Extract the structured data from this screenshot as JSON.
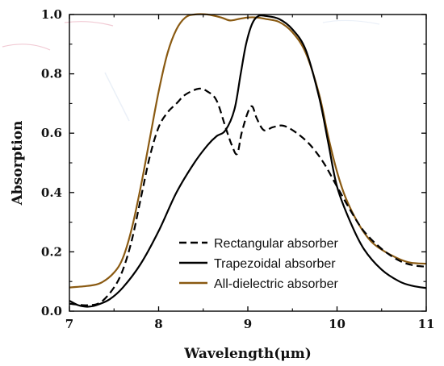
{
  "chart_data": {
    "type": "line",
    "title": "",
    "xlabel": "Wavelength(μm)",
    "ylabel": "Absorption",
    "xlim": [
      7,
      11
    ],
    "ylim": [
      0,
      1.0
    ],
    "x_ticks": [
      7,
      8,
      9,
      10,
      11
    ],
    "x_tick_labels": [
      "7",
      "8",
      "9",
      "10",
      "11"
    ],
    "y_ticks": [
      0.0,
      0.2,
      0.4,
      0.6,
      0.8,
      1.0
    ],
    "y_tick_labels": [
      "0.0",
      "0.2",
      "0.4",
      "0.6",
      "0.8",
      "1.0"
    ],
    "grid": false,
    "legend_position": "bottom-center",
    "series": [
      {
        "name": "Rectangular absorber",
        "color": "#000000",
        "style": "dashed",
        "points": [
          [
            7.0,
            0.025
          ],
          [
            7.2,
            0.02
          ],
          [
            7.35,
            0.03
          ],
          [
            7.5,
            0.08
          ],
          [
            7.6,
            0.14
          ],
          [
            7.7,
            0.24
          ],
          [
            7.8,
            0.38
          ],
          [
            7.9,
            0.52
          ],
          [
            8.0,
            0.62
          ],
          [
            8.1,
            0.67
          ],
          [
            8.2,
            0.7
          ],
          [
            8.3,
            0.73
          ],
          [
            8.45,
            0.75
          ],
          [
            8.55,
            0.74
          ],
          [
            8.65,
            0.71
          ],
          [
            8.75,
            0.62
          ],
          [
            8.82,
            0.56
          ],
          [
            8.88,
            0.53
          ],
          [
            8.93,
            0.6
          ],
          [
            9.0,
            0.67
          ],
          [
            9.05,
            0.69
          ],
          [
            9.1,
            0.65
          ],
          [
            9.18,
            0.61
          ],
          [
            9.28,
            0.62
          ],
          [
            9.4,
            0.625
          ],
          [
            9.55,
            0.6
          ],
          [
            9.7,
            0.56
          ],
          [
            9.85,
            0.5
          ],
          [
            10.0,
            0.42
          ],
          [
            10.15,
            0.34
          ],
          [
            10.3,
            0.27
          ],
          [
            10.5,
            0.21
          ],
          [
            10.7,
            0.17
          ],
          [
            10.85,
            0.155
          ],
          [
            11.0,
            0.15
          ]
        ]
      },
      {
        "name": "Trapezoidal absorber",
        "color": "#000000",
        "style": "solid",
        "points": [
          [
            7.0,
            0.035
          ],
          [
            7.1,
            0.02
          ],
          [
            7.2,
            0.015
          ],
          [
            7.3,
            0.02
          ],
          [
            7.45,
            0.04
          ],
          [
            7.6,
            0.08
          ],
          [
            7.8,
            0.16
          ],
          [
            8.0,
            0.27
          ],
          [
            8.2,
            0.4
          ],
          [
            8.4,
            0.5
          ],
          [
            8.55,
            0.56
          ],
          [
            8.65,
            0.59
          ],
          [
            8.75,
            0.61
          ],
          [
            8.85,
            0.68
          ],
          [
            8.92,
            0.8
          ],
          [
            8.98,
            0.9
          ],
          [
            9.05,
            0.97
          ],
          [
            9.12,
            0.995
          ],
          [
            9.2,
            0.995
          ],
          [
            9.35,
            0.985
          ],
          [
            9.5,
            0.95
          ],
          [
            9.65,
            0.88
          ],
          [
            9.8,
            0.72
          ],
          [
            9.9,
            0.57
          ],
          [
            10.0,
            0.42
          ],
          [
            10.15,
            0.3
          ],
          [
            10.3,
            0.21
          ],
          [
            10.5,
            0.14
          ],
          [
            10.7,
            0.1
          ],
          [
            10.85,
            0.085
          ],
          [
            11.0,
            0.078
          ]
        ]
      },
      {
        "name": "All-dielectric absorber",
        "color": "#8a5a12",
        "style": "solid",
        "points": [
          [
            7.0,
            0.08
          ],
          [
            7.2,
            0.085
          ],
          [
            7.35,
            0.095
          ],
          [
            7.5,
            0.13
          ],
          [
            7.6,
            0.18
          ],
          [
            7.7,
            0.28
          ],
          [
            7.8,
            0.42
          ],
          [
            7.9,
            0.58
          ],
          [
            8.0,
            0.74
          ],
          [
            8.1,
            0.87
          ],
          [
            8.2,
            0.95
          ],
          [
            8.3,
            0.99
          ],
          [
            8.4,
            1.0
          ],
          [
            8.55,
            1.0
          ],
          [
            8.7,
            0.99
          ],
          [
            8.8,
            0.98
          ],
          [
            8.9,
            0.985
          ],
          [
            9.0,
            0.99
          ],
          [
            9.1,
            0.99
          ],
          [
            9.2,
            0.985
          ],
          [
            9.35,
            0.975
          ],
          [
            9.5,
            0.94
          ],
          [
            9.65,
            0.87
          ],
          [
            9.8,
            0.73
          ],
          [
            9.9,
            0.59
          ],
          [
            10.0,
            0.47
          ],
          [
            10.1,
            0.38
          ],
          [
            10.25,
            0.29
          ],
          [
            10.4,
            0.23
          ],
          [
            10.6,
            0.19
          ],
          [
            10.8,
            0.165
          ],
          [
            11.0,
            0.16
          ]
        ]
      }
    ]
  }
}
